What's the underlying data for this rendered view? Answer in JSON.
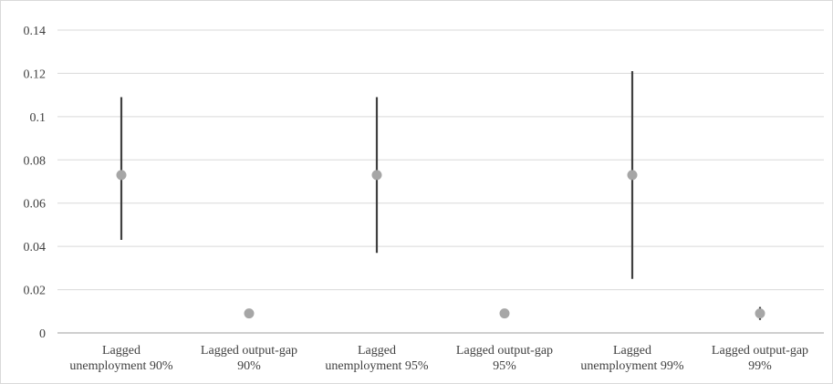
{
  "chart_data": {
    "type": "scatter",
    "title": "",
    "xlabel": "",
    "ylabel": "",
    "ylim": [
      0,
      0.14
    ],
    "y_ticks": [
      "0",
      "0.02",
      "0.04",
      "0.06",
      "0.08",
      "0.1",
      "0.12",
      "0.14"
    ],
    "grid": "horizontal",
    "legend": "none",
    "categories": [
      [
        "Lagged",
        "unemployment 90%"
      ],
      [
        "Lagged output-gap",
        "90%"
      ],
      [
        "Lagged",
        "unemployment 95%"
      ],
      [
        "Lagged output-gap",
        "95%"
      ],
      [
        "Lagged",
        "unemployment 99%"
      ],
      [
        "Lagged output-gap",
        "99%"
      ]
    ],
    "series": [
      {
        "values": [
          0.073,
          0.009,
          0.073,
          0.009,
          0.073,
          0.009
        ],
        "lower": [
          0.043,
          0.008,
          0.037,
          0.008,
          0.025,
          0.006
        ],
        "upper": [
          0.109,
          0.01,
          0.109,
          0.01,
          0.121,
          0.012
        ]
      }
    ],
    "colors": {
      "point": "#a6a6a6",
      "interval": "#404040",
      "grid": "#d9d9d9",
      "axis": "#bfbfbf",
      "text": "#404040"
    }
  }
}
